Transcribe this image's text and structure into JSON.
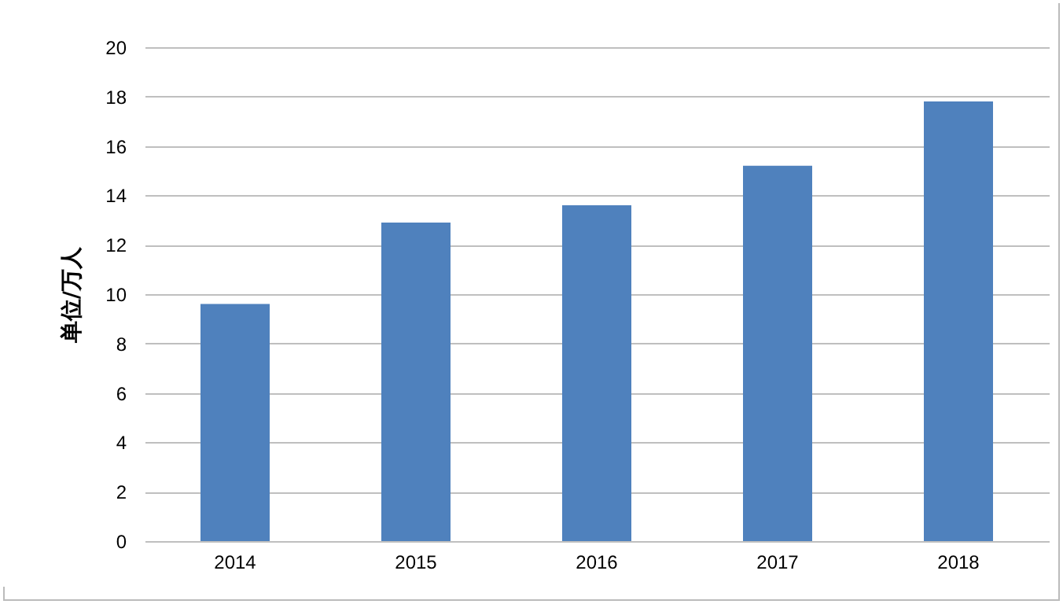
{
  "chart_data": {
    "type": "bar",
    "ylabel": "单位/万人",
    "categories": [
      "2014",
      "2015",
      "2016",
      "2017",
      "2018"
    ],
    "values": [
      9.6,
      12.9,
      13.6,
      15.2,
      17.8
    ],
    "color": "#4f81bd",
    "ylim": [
      0,
      20
    ],
    "yticks": [
      0,
      2,
      4,
      6,
      8,
      10,
      12,
      14,
      16,
      18,
      20
    ],
    "grid": "y"
  }
}
